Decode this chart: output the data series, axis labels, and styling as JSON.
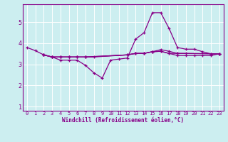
{
  "xlabel": "Windchill (Refroidissement éolien,°C)",
  "background_color": "#cceef0",
  "line_color": "#880088",
  "grid_color": "#ffffff",
  "xlim": [
    -0.5,
    23.5
  ],
  "ylim": [
    0.8,
    5.85
  ],
  "xticks": [
    0,
    1,
    2,
    3,
    4,
    5,
    6,
    7,
    8,
    9,
    10,
    11,
    12,
    13,
    14,
    15,
    16,
    17,
    18,
    19,
    20,
    21,
    22,
    23
  ],
  "yticks": [
    1,
    2,
    3,
    4,
    5
  ],
  "series": [
    {
      "x": [
        0,
        1,
        2,
        3,
        4,
        5,
        6,
        7,
        8,
        9,
        10,
        11,
        12,
        13,
        14,
        15,
        16,
        17,
        18,
        19,
        20,
        21,
        22,
        23
      ],
      "y": [
        3.8,
        3.65,
        3.45,
        3.35,
        3.2,
        3.2,
        3.2,
        2.95,
        2.6,
        2.35,
        3.2,
        3.25,
        3.3,
        4.2,
        4.5,
        5.45,
        5.45,
        4.7,
        3.8,
        3.72,
        3.72,
        3.6,
        3.5,
        3.5
      ]
    },
    {
      "x": [
        2,
        3,
        4,
        5,
        6,
        7,
        8,
        12,
        13,
        14,
        15,
        16,
        17,
        18,
        19,
        23
      ],
      "y": [
        3.45,
        3.35,
        3.35,
        3.35,
        3.35,
        3.35,
        3.35,
        3.45,
        3.52,
        3.52,
        3.6,
        3.7,
        3.62,
        3.52,
        3.52,
        3.5
      ]
    },
    {
      "x": [
        2,
        3,
        4,
        5,
        6,
        7,
        12,
        13,
        14,
        15,
        16,
        17,
        18,
        22,
        23
      ],
      "y": [
        3.45,
        3.35,
        3.35,
        3.35,
        3.35,
        3.35,
        3.45,
        3.52,
        3.52,
        3.6,
        3.62,
        3.52,
        3.52,
        3.5,
        3.5
      ]
    },
    {
      "x": [
        2,
        3,
        4,
        5,
        6,
        7,
        12,
        13,
        14,
        15,
        16,
        17,
        18,
        19,
        20,
        21,
        22,
        23
      ],
      "y": [
        3.45,
        3.35,
        3.35,
        3.35,
        3.35,
        3.35,
        3.45,
        3.52,
        3.52,
        3.6,
        3.62,
        3.52,
        3.42,
        3.42,
        3.42,
        3.42,
        3.42,
        3.5
      ]
    }
  ]
}
